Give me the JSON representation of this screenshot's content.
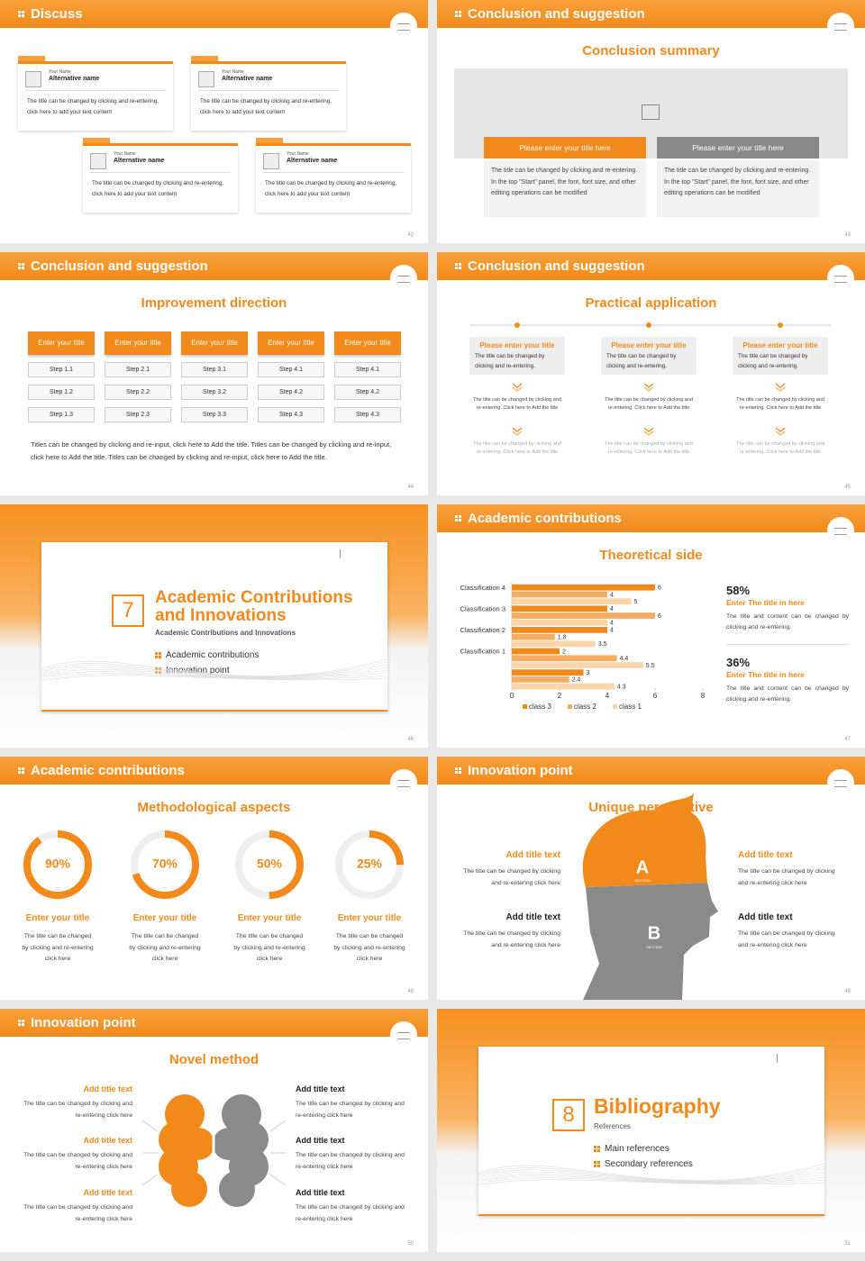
{
  "slides": [
    {
      "header": "Discuss",
      "page": "42",
      "cards": [
        {
          "small": "Your Name",
          "name": "Alternative name",
          "text": "The title can be changed by clicking and re-entering, click here to add your text content"
        },
        {
          "small": "Your Name",
          "name": "Alternative name",
          "text": "The title can be changed by clicking and re-entering, click here to add your text content"
        },
        {
          "small": "Your Name",
          "name": "Alternative name",
          "text": "The title can be changed by clicking and re-entering, click here to add your text content"
        },
        {
          "small": "Your Name",
          "name": "Alternative name",
          "text": "The title can be changed by clicking and re-entering, click here to add your text content"
        }
      ]
    },
    {
      "header": "Conclusion and suggestion",
      "title": "Conclusion summary",
      "page": "43",
      "panels": [
        {
          "title": "Please enter your title here",
          "text": "The title can be changed by clicking and re-entering. In the top \"Start\" panel, the font, font size, and other editing operations can be modified"
        },
        {
          "title": "Please enter your title here",
          "text": "The title can be changed by clicking and re-entering. In the top \"Start\" panel, the font, font size, and other editing operations can be modified"
        }
      ]
    },
    {
      "header": "Conclusion and suggestion",
      "title": "Improvement direction",
      "page": "44",
      "columns": [
        {
          "title": "Enter your title",
          "steps": [
            "Step 1.1",
            "Step 1.2",
            "Step 1.3"
          ]
        },
        {
          "title": "Enter your title",
          "steps": [
            "Step 2.1",
            "Step 2.2",
            "Step 2.3"
          ]
        },
        {
          "title": "Enter your title",
          "steps": [
            "Step 3.1",
            "Step 3.2",
            "Step 3.3"
          ]
        },
        {
          "title": "Enter your title",
          "steps": [
            "Step 4.1",
            "Step 4.2",
            "Step 4.3"
          ]
        },
        {
          "title": "Enter your title",
          "steps": [
            "Step 4.1",
            "Step 4.2",
            "Step 4.3"
          ]
        }
      ],
      "note": "Titles can be changed by clicking and re-input, click here to Add the title. Titles can be changed by clicking and re-input, click here to Add the title. Titles can be changed by clicking and re-input, click here to Add the title."
    },
    {
      "header": "Conclusion and suggestion",
      "title": "Practical application",
      "page": "45",
      "items": [
        {
          "title": "Please enter your title",
          "text": "The title can be changed by clicking and re-entering.",
          "sub1": "The title can be changed by clicking and re-entering. Click here to Add the title",
          "sub2": "The title can be changed by clicking and re-entering. Click here to Add the title"
        },
        {
          "title": "Please enter your title",
          "text": "The title can be changed by clicking and re-entering.",
          "sub1": "The title can be changed by clicking and re-entering. Click here to Add the title",
          "sub2": "The title can be changed by clicking and re-entering. Click here to Add the title"
        },
        {
          "title": "Please enter your title",
          "text": "The title can be changed by clicking and re-entering.",
          "sub1": "The title can be changed by clicking and re-entering. Click here to Add the title",
          "sub2": "The title can be changed by clicking and re-entering. Click here to Add the title"
        }
      ]
    },
    {
      "section": true,
      "number": "7",
      "title": "Academic Contributions and Innovations",
      "subtitle": "Academic Contributions and Innovations",
      "items": [
        "Academic contributions",
        "Innovation point"
      ],
      "page": "46"
    },
    {
      "header": "Academic contributions",
      "title": "Theoretical side",
      "page": "47",
      "chart_data": {
        "type": "bar",
        "orientation": "horizontal",
        "categories": [
          null,
          "Classification 1",
          "Classification 2",
          "Classification 3",
          "Classification 4"
        ],
        "series": [
          {
            "name": "class 3",
            "color": "#f28a1b",
            "values": [
              3,
              2,
              4,
              4,
              6
            ]
          },
          {
            "name": "class 2",
            "color": "#f6ad62",
            "values": [
              2.4,
              4.4,
              1.8,
              6,
              4
            ]
          },
          {
            "name": "class 1",
            "color": "#fbd4a8",
            "values": [
              4.3,
              5.5,
              3.5,
              4,
              5
            ]
          }
        ],
        "xlim": [
          0,
          8
        ],
        "xticks": [
          0,
          2,
          4,
          6,
          8
        ],
        "legend": "bottom"
      },
      "stats": [
        {
          "value": "58%",
          "title": "Enter The title in here",
          "text": "The title and content can be changed by clicking and re-entering."
        },
        {
          "value": "36%",
          "title": "Enter The title in here",
          "text": "The title and content can be changed by clicking and re-entering."
        }
      ]
    },
    {
      "header": "Academic contributions",
      "title": "Methodological aspects",
      "page": "48",
      "rings": [
        {
          "value": 90,
          "label": "90%",
          "title": "Enter your title",
          "text": "The title can be changed by clicking and re-entering click here"
        },
        {
          "value": 70,
          "label": "70%",
          "title": "Enter your title",
          "text": "The title can be changed by clicking and re-entering click here"
        },
        {
          "value": 50,
          "label": "50%",
          "title": "Enter your title",
          "text": "The title can be changed by clicking and re-entering click here"
        },
        {
          "value": 25,
          "label": "25%",
          "title": "Enter your title",
          "text": "The title can be changed by clicking and re-entering click here"
        }
      ]
    },
    {
      "header": "Innovation point",
      "title": "Unique perspective",
      "page": "49",
      "letters": [
        "A",
        "B"
      ],
      "section_label": "SECTION",
      "items": [
        {
          "title": "Add title text",
          "text": "The title can be changed by clicking and re-entering click here"
        },
        {
          "title": "Add title text",
          "text": "The title can be changed by clicking and re-entering click here"
        },
        {
          "title": "Add title text",
          "text": "The title can be changed by clicking and re-entering click here"
        },
        {
          "title": "Add title text",
          "text": "The title can be changed by clicking and re-entering click here"
        }
      ]
    },
    {
      "header": "Innovation point",
      "title": "Novel method",
      "page": "50",
      "items": [
        {
          "title": "Add title text",
          "text": "The title can be changed by clicking and re-entering click here"
        },
        {
          "title": "Add title text",
          "text": "The title can be changed by clicking and re-entering click here"
        },
        {
          "title": "Add title text",
          "text": "The title can be changed by clicking and re-entering click here"
        },
        {
          "title": "Add title text",
          "text": "The title can be changed by clicking and re-entering click here"
        },
        {
          "title": "Add title text",
          "text": "The title can be changed by clicking and re-entering click here"
        },
        {
          "title": "Add title text",
          "text": "The title can be changed by clicking and re-entering click here"
        }
      ]
    },
    {
      "section": true,
      "number": "8",
      "title": "Bibliography",
      "subtitle": "References",
      "items": [
        "Main references",
        "Secondary references"
      ],
      "page": "51"
    }
  ]
}
